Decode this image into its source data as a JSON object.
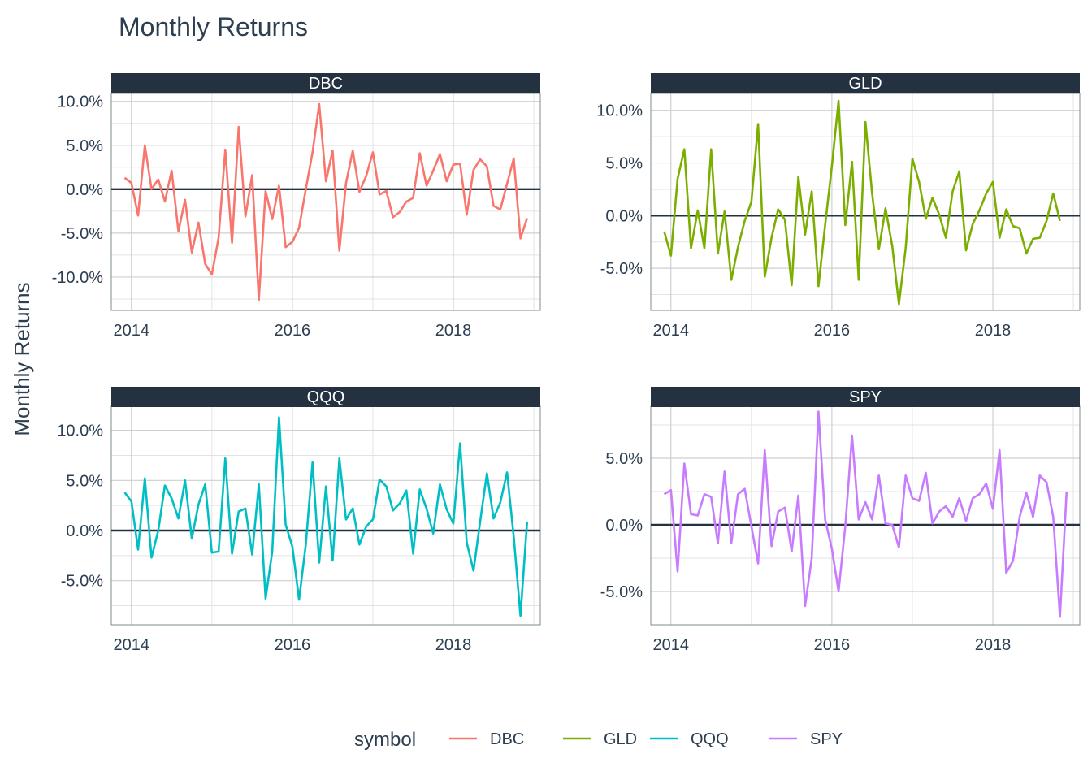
{
  "chart_data": {
    "type": "line",
    "title": "Monthly Returns",
    "ylabel": "Monthly Returns",
    "xlabel": "",
    "x_ticks": [
      "2014",
      "2016",
      "2018"
    ],
    "x_tick_values": [
      2014,
      2016,
      2018
    ],
    "x_start": "2013-12",
    "x_range": [
      2013.75,
      2019.08
    ],
    "grid": true,
    "legend": {
      "title": "symbol",
      "position": "bottom",
      "items": [
        {
          "name": "DBC",
          "color": "#f8766d"
        },
        {
          "name": "GLD",
          "color": "#7cae00"
        },
        {
          "name": "QQQ",
          "color": "#00bfc4"
        },
        {
          "name": "SPY",
          "color": "#c77cff"
        }
      ]
    },
    "panels": [
      {
        "symbol": "DBC",
        "color": "#f8766d",
        "ylim": [
          -13.8,
          10.9
        ],
        "y_ticks": [
          10,
          5,
          0,
          -5,
          -10
        ],
        "y_tick_labels": [
          "10.0%",
          "5.0%",
          "0.0%",
          "-5.0%",
          "-10.0%"
        ],
        "values": [
          1.3,
          0.7,
          -3.0,
          5.0,
          0.0,
          1.1,
          -1.4,
          2.1,
          -4.8,
          -1.2,
          -7.2,
          -3.8,
          -8.5,
          -9.7,
          -5.5,
          4.5,
          -6.1,
          7.1,
          -3.1,
          1.6,
          -12.6,
          -0.2,
          -3.4,
          0.4,
          -6.6,
          -6.0,
          -4.4,
          0.0,
          4.2,
          9.7,
          0.9,
          4.4,
          -7.0,
          0.7,
          4.4,
          -0.3,
          1.5,
          4.2,
          -0.6,
          -0.2,
          -3.2,
          -2.6,
          -1.4,
          -1.0,
          4.1,
          0.4,
          2.1,
          4.0,
          0.9,
          2.8,
          2.9,
          -2.9,
          2.2,
          3.4,
          2.6,
          -1.9,
          -2.3,
          0.6,
          3.5,
          -5.6,
          -3.3
        ]
      },
      {
        "symbol": "GLD",
        "color": "#7cae00",
        "ylim": [
          -9.0,
          11.6
        ],
        "y_ticks": [
          10,
          5,
          0,
          -5
        ],
        "y_tick_labels": [
          "10.0%",
          "5.0%",
          "0.0%",
          "-5.0%"
        ],
        "values": [
          -1.5,
          -3.8,
          3.5,
          6.3,
          -3.1,
          0.5,
          -3.1,
          6.3,
          -3.6,
          0.4,
          -6.1,
          -3.0,
          -0.5,
          1.3,
          8.7,
          -5.8,
          -2.1,
          0.6,
          -0.4,
          -6.6,
          3.7,
          -1.8,
          2.3,
          -6.7,
          -0.9,
          4.7,
          10.9,
          -0.9,
          5.1,
          -6.1,
          8.9,
          2.1,
          -3.2,
          0.7,
          -2.9,
          -8.4,
          -3.1,
          5.4,
          3.2,
          -0.3,
          1.7,
          0.1,
          -2.1,
          2.3,
          4.2,
          -3.3,
          -0.8,
          0.5,
          2.1,
          3.2,
          -2.1,
          0.6,
          -1.0,
          -1.2,
          -3.6,
          -2.2,
          -2.1,
          -0.5,
          2.1,
          -0.5
        ]
      },
      {
        "symbol": "QQQ",
        "color": "#00bfc4",
        "ylim": [
          -9.4,
          12.4
        ],
        "y_ticks": [
          10,
          5,
          0,
          -5
        ],
        "y_tick_labels": [
          "10.0%",
          "5.0%",
          "0.0%",
          "-5.0%"
        ],
        "values": [
          3.8,
          2.9,
          -1.9,
          5.2,
          -2.7,
          0.0,
          4.5,
          3.2,
          1.2,
          5.0,
          -0.8,
          2.6,
          4.6,
          -2.2,
          -2.1,
          7.2,
          -2.3,
          1.9,
          2.2,
          -2.4,
          4.6,
          -6.8,
          -2.1,
          11.3,
          0.6,
          -1.6,
          -6.9,
          -1.4,
          6.8,
          -3.2,
          4.4,
          -3.0,
          7.2,
          1.1,
          2.2,
          -1.4,
          0.4,
          1.1,
          5.1,
          4.4,
          2.0,
          2.7,
          4.0,
          -2.3,
          4.1,
          2.2,
          -0.3,
          4.6,
          2.1,
          0.7,
          8.7,
          -1.2,
          -4.0,
          0.9,
          5.7,
          1.2,
          2.8,
          5.8,
          -0.6,
          -8.5,
          0.9
        ]
      },
      {
        "symbol": "SPY",
        "color": "#c77cff",
        "ylim": [
          -7.5,
          8.9
        ],
        "y_ticks": [
          5,
          0,
          -5
        ],
        "y_tick_labels": [
          "5.0%",
          "0.0%",
          "-5.0%"
        ],
        "values": [
          2.3,
          2.6,
          -3.5,
          4.6,
          0.8,
          0.7,
          2.3,
          2.1,
          -1.4,
          4.0,
          -1.4,
          2.3,
          2.7,
          -0.1,
          -2.9,
          5.6,
          -1.6,
          1.0,
          1.3,
          -2.0,
          2.2,
          -6.1,
          -2.5,
          8.5,
          0.4,
          -1.8,
          -5.0,
          -0.1,
          6.7,
          0.4,
          1.7,
          0.4,
          3.7,
          0.1,
          0.0,
          -1.7,
          3.7,
          2.0,
          1.8,
          3.9,
          0.1,
          1.0,
          1.4,
          0.6,
          2.0,
          0.3,
          2.0,
          2.3,
          3.1,
          1.2,
          5.6,
          -3.6,
          -2.7,
          0.6,
          2.4,
          0.6,
          3.7,
          3.2,
          0.6,
          -6.9,
          2.5
        ]
      }
    ]
  }
}
